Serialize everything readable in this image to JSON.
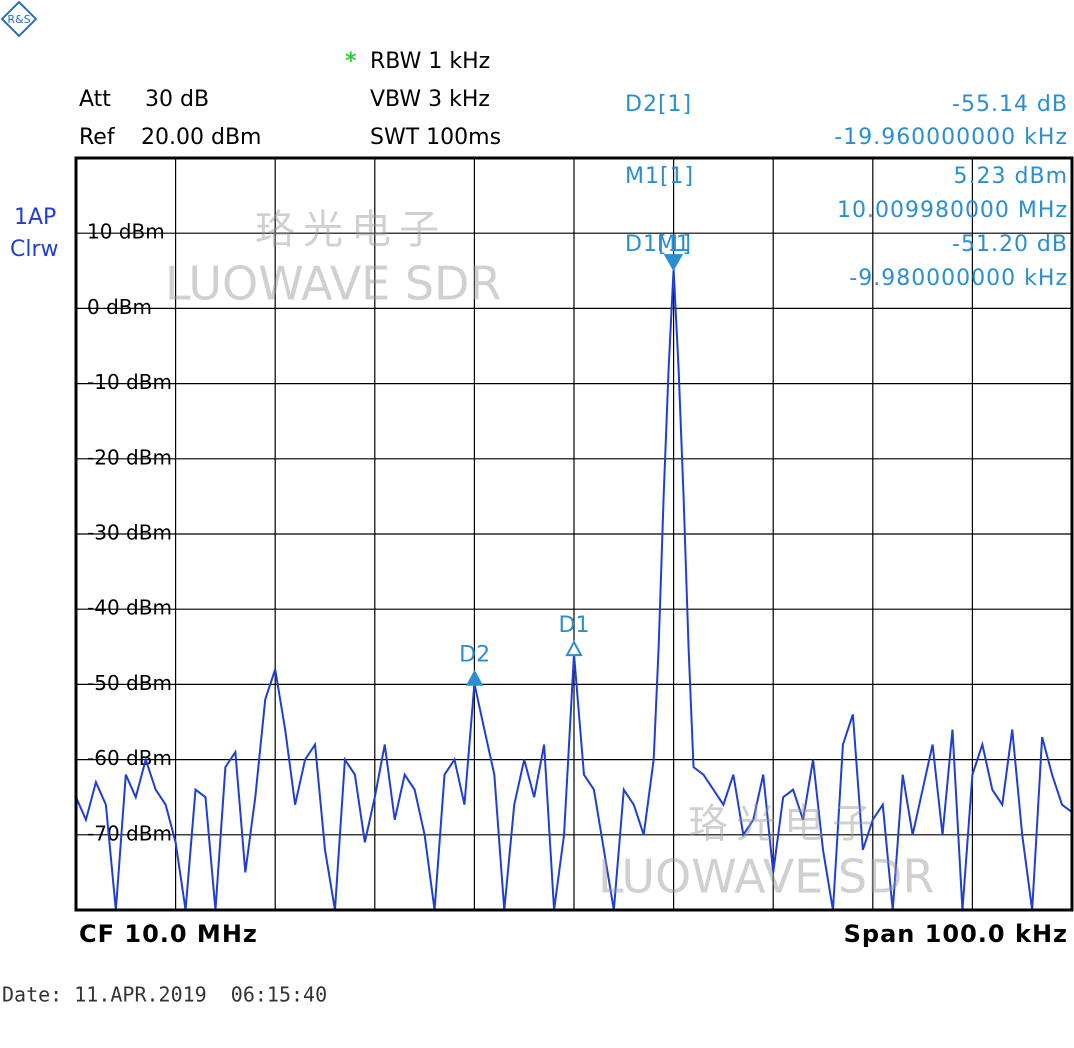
{
  "chart_data": {
    "type": "line",
    "header": {
      "att_label": "Att",
      "att_value": "30 dB",
      "ref_label": "Ref",
      "ref_value": "20.00 dBm",
      "rbw_flag": "*",
      "rbw": "RBW 1 kHz",
      "vbw": "VBW 3 kHz",
      "swt": "SWT 100ms"
    },
    "trace_info": [
      "1AP",
      "Clrw"
    ],
    "marker_table": [
      {
        "label": "D2[1]",
        "value": "-55.14 dB",
        "offset": "-19.960000000 kHz"
      },
      {
        "label": "M1[1]",
        "value": "5.23 dBm",
        "offset": "10.009980000 MHz"
      },
      {
        "label": "D1[1]",
        "value": "-51.20 dB",
        "offset": "-9.980000000 kHz"
      }
    ],
    "cf": "CF 10.0 MHz",
    "span": "Span 100.0 kHz",
    "date": "Date: 11.APR.2019  06:15:40",
    "watermark": [
      "珞光电子",
      "LUOWAVE SDR"
    ],
    "xlim": [
      9.95,
      10.05
    ],
    "ylim": [
      -80,
      20
    ],
    "yticks": [
      {
        "value": 10,
        "label": "10 dBm"
      },
      {
        "value": 0,
        "label": "0 dBm"
      },
      {
        "value": -10,
        "label": "-10 dBm"
      },
      {
        "value": -20,
        "label": "-20 dBm"
      },
      {
        "value": -30,
        "label": "-30 dBm"
      },
      {
        "value": -40,
        "label": "-40 dBm"
      },
      {
        "value": -50,
        "label": "-50 dBm"
      },
      {
        "value": -60,
        "label": "-60 dBm"
      },
      {
        "value": -70,
        "label": "-70 dBm"
      }
    ],
    "grid": true,
    "series": [
      {
        "color": "#1f3fd0",
        "x": [
          9.95,
          9.951,
          9.952,
          9.953,
          9.954,
          9.955,
          9.956,
          9.957,
          9.958,
          9.959,
          9.96,
          9.961,
          9.962,
          9.963,
          9.964,
          9.965,
          9.966,
          9.967,
          9.968,
          9.969,
          9.97,
          9.971,
          9.972,
          9.973,
          9.974,
          9.975,
          9.976,
          9.977,
          9.978,
          9.979,
          9.98,
          9.981,
          9.982,
          9.983,
          9.984,
          9.985,
          9.986,
          9.987,
          9.988,
          9.989,
          9.99,
          9.991,
          9.992,
          9.993,
          9.994,
          9.995,
          9.996,
          9.997,
          9.998,
          9.999,
          10.0,
          10.001,
          10.002,
          10.003,
          10.004,
          10.005,
          10.006,
          10.007,
          10.008,
          10.0085,
          10.009,
          10.0095,
          10.01,
          10.0105,
          10.011,
          10.0115,
          10.012,
          10.013,
          10.014,
          10.015,
          10.016,
          10.017,
          10.018,
          10.019,
          10.02,
          10.021,
          10.022,
          10.023,
          10.024,
          10.025,
          10.026,
          10.027,
          10.028,
          10.029,
          10.03,
          10.031,
          10.032,
          10.033,
          10.034,
          10.035,
          10.036,
          10.037,
          10.038,
          10.039,
          10.04,
          10.041,
          10.042,
          10.043,
          10.044,
          10.045,
          10.046,
          10.047,
          10.048,
          10.049,
          10.05
        ],
        "values": [
          -65,
          -68,
          -63,
          -66,
          -80,
          -62,
          -65,
          -60,
          -64,
          -66,
          -71,
          -80,
          -64,
          -65,
          -80,
          -61,
          -59,
          -75,
          -65,
          -52,
          -48,
          -56,
          -66,
          -60,
          -58,
          -72,
          -80,
          -60,
          -62,
          -71,
          -65,
          -58,
          -68,
          -62,
          -64,
          -70,
          -80,
          -62,
          -60,
          -66,
          -49.91,
          -56,
          -62,
          -80,
          -66,
          -60,
          -65,
          -58,
          -80,
          -70,
          -45.97,
          -62,
          -64,
          -72,
          -80,
          -64,
          -66,
          -70,
          -60,
          -45,
          -25,
          -8,
          5.23,
          -8,
          -25,
          -45,
          -61,
          -62,
          -64,
          -66,
          -62,
          -70,
          -68,
          -62,
          -75,
          -65,
          -64,
          -68,
          -60,
          -72,
          -80,
          -58,
          -54,
          -72,
          -68,
          -66,
          -80,
          -62,
          -70,
          -64,
          -58,
          -70,
          -56,
          -80,
          -62,
          -58,
          -64,
          -66,
          -56,
          -70,
          -80,
          -57,
          -62,
          -66,
          -67
        ]
      }
    ],
    "markers": [
      {
        "label": "M1",
        "x": 10.00998,
        "y": 5.23,
        "direction": "down",
        "filled": true
      },
      {
        "label": "D1",
        "x": 10.0,
        "y": -45.97,
        "direction": "up",
        "filled": false
      },
      {
        "label": "D2",
        "x": 9.99002,
        "y": -49.91,
        "direction": "up",
        "filled": true
      }
    ]
  }
}
